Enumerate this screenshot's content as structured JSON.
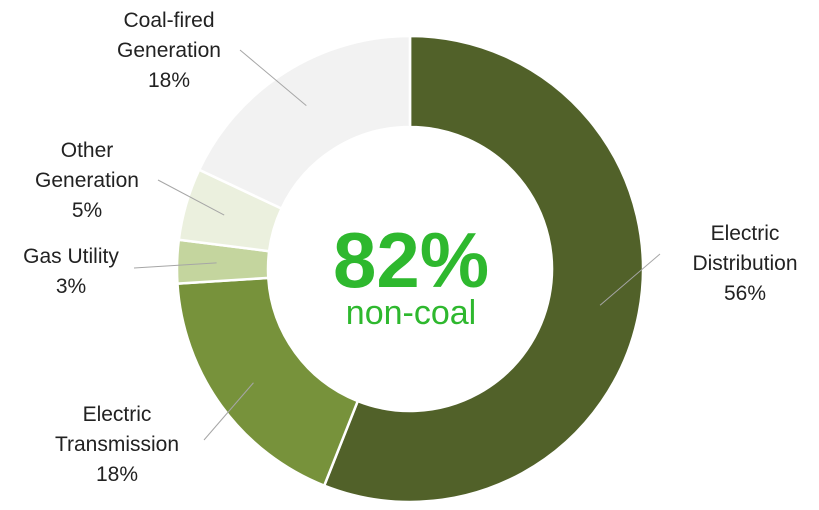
{
  "chart_data": {
    "type": "pie",
    "style": "donut",
    "slices": [
      {
        "label": [
          "Electric",
          "Distribution"
        ],
        "percent_label": "56%",
        "value": 56,
        "color": "#516129"
      },
      {
        "label": [
          "Electric",
          "Transmission"
        ],
        "percent_label": "18%",
        "value": 18,
        "color": "#77923b"
      },
      {
        "label": [
          "Gas Utility"
        ],
        "percent_label": "3%",
        "value": 3,
        "color": "#c4d59e"
      },
      {
        "label": [
          "Other",
          "Generation"
        ],
        "percent_label": "5%",
        "value": 5,
        "color": "#ebf0de"
      },
      {
        "label": [
          "Coal-fired",
          "Generation"
        ],
        "percent_label": "18%",
        "value": 18,
        "color": "#f2f2f2"
      }
    ],
    "center": {
      "value": "82%",
      "caption": "non-coal",
      "color": "#2eb82e"
    }
  }
}
